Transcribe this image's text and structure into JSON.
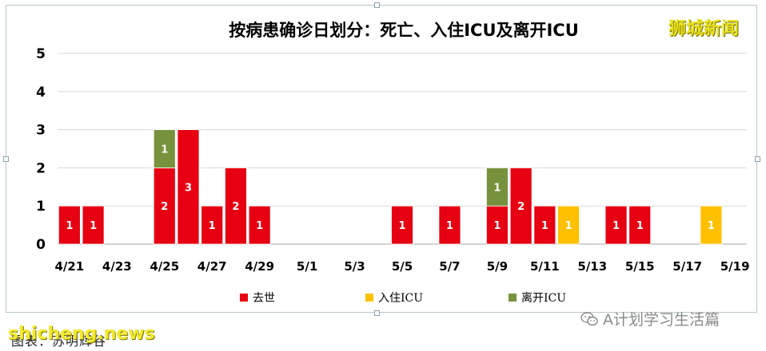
{
  "watermarks": {
    "brand": "狮城新闻",
    "domain": "shicheng.news",
    "credit": "图表：苏明辉谷",
    "wechat": "A计划学习生活篇",
    "wechat_icon": "wechat-icon"
  },
  "colors": {
    "death": "#e60012",
    "icu_in": "#ffc000",
    "icu_out": "#76923c",
    "grid": "#d9d9d9",
    "axis": "#a6a6a6"
  },
  "chart_data": {
    "type": "bar",
    "stacked": true,
    "title": "按病患确诊日划分：死亡、入住ICU及离开ICU",
    "xlabel": "",
    "ylabel": "",
    "ylim": [
      0,
      5
    ],
    "yticks": [
      "0",
      "1",
      "2",
      "3",
      "4",
      "5"
    ],
    "grid": true,
    "legend_position": "bottom",
    "categories": [
      "4/21",
      "4/22",
      "4/23",
      "4/24",
      "4/25",
      "4/26",
      "4/27",
      "4/28",
      "4/29",
      "4/30",
      "5/1",
      "5/2",
      "5/3",
      "5/4",
      "5/5",
      "5/6",
      "5/7",
      "5/8",
      "5/9",
      "5/10",
      "5/11",
      "5/12",
      "5/13",
      "5/14",
      "5/15",
      "5/16",
      "5/17",
      "5/18",
      "5/19"
    ],
    "xtick_labels": [
      "4/21",
      "",
      "4/23",
      "",
      "4/25",
      "",
      "4/27",
      "",
      "4/29",
      "",
      "5/1",
      "",
      "5/3",
      "",
      "5/5",
      "",
      "5/7",
      "",
      "5/9",
      "",
      "5/11",
      "",
      "5/13",
      "",
      "5/15",
      "",
      "5/17",
      "",
      "5/19"
    ],
    "series": [
      {
        "name": "去世",
        "color": "#e60012",
        "values": [
          1,
          1,
          0,
          0,
          2,
          3,
          1,
          2,
          1,
          0,
          0,
          0,
          0,
          0,
          1,
          0,
          1,
          0,
          1,
          2,
          1,
          0,
          0,
          1,
          1,
          0,
          0,
          0,
          0
        ]
      },
      {
        "name": "入住ICU",
        "color": "#ffc000",
        "values": [
          0,
          0,
          0,
          0,
          0,
          0,
          0,
          0,
          0,
          0,
          0,
          0,
          0,
          0,
          0,
          0,
          0,
          0,
          0,
          0,
          0,
          1,
          0,
          0,
          0,
          0,
          0,
          1,
          0
        ]
      },
      {
        "name": "离开ICU",
        "color": "#76923c",
        "values": [
          0,
          0,
          0,
          0,
          1,
          0,
          0,
          0,
          0,
          0,
          0,
          0,
          0,
          0,
          0,
          0,
          0,
          0,
          1,
          0,
          0,
          0,
          0,
          0,
          0,
          0,
          0,
          0,
          0
        ]
      }
    ]
  }
}
